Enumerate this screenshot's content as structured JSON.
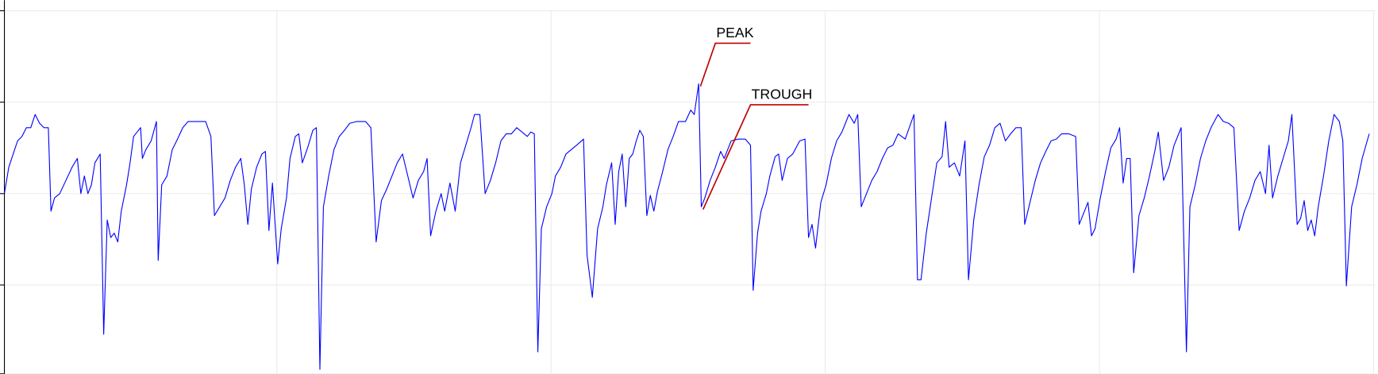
{
  "chart_data": {
    "type": "line",
    "x": [
      5,
      10,
      15,
      20,
      25,
      30,
      35,
      40,
      45,
      50,
      55,
      58,
      62,
      68,
      75,
      82,
      88,
      92,
      96,
      100,
      104,
      108,
      114,
      118,
      122,
      126,
      130,
      134,
      138,
      144,
      148,
      152,
      156,
      160,
      162,
      166,
      172,
      178,
      180,
      184,
      190,
      196,
      202,
      208,
      214,
      220,
      228,
      234,
      240,
      244,
      250,
      256,
      262,
      268,
      274,
      278,
      282,
      286,
      292,
      298,
      302,
      306,
      310,
      316,
      320,
      326,
      330,
      336,
      340,
      344,
      350,
      356,
      360,
      364,
      368,
      374,
      380,
      386,
      392,
      398,
      406,
      416,
      422,
      428,
      434,
      440,
      446,
      452,
      458,
      464,
      470,
      476,
      482,
      486,
      490,
      496,
      502,
      506,
      512,
      518,
      524,
      530,
      536,
      540,
      546,
      552,
      558,
      564,
      570,
      576,
      582,
      588,
      594,
      600,
      604,
      608,
      612,
      616,
      622,
      628,
      632,
      638,
      644,
      650,
      656,
      664,
      668,
      674,
      680,
      686,
      690,
      696,
      700,
      704,
      708,
      712,
      716,
      720,
      724,
      728,
      732,
      736,
      740,
      744,
      748,
      754,
      760,
      766,
      772,
      780,
      786,
      790,
      795,
      798,
      802,
      808,
      814,
      820,
      824,
      828,
      832,
      840,
      848,
      854,
      857,
      862,
      866,
      872,
      876,
      882,
      886,
      890,
      896,
      902,
      910,
      916,
      920,
      924,
      928,
      934,
      940,
      946,
      952,
      958,
      962,
      966,
      972,
      976,
      980,
      986,
      992,
      998,
      1004,
      1010,
      1016,
      1022,
      1030,
      1040,
      1044,
      1048,
      1054,
      1060,
      1066,
      1072,
      1076,
      1080,
      1086,
      1092,
      1098,
      1102,
      1108,
      1114,
      1120,
      1126,
      1132,
      1138,
      1144,
      1150,
      1156,
      1162,
      1166,
      1172,
      1178,
      1184,
      1190,
      1196,
      1202,
      1208,
      1216,
      1224,
      1228,
      1234,
      1238,
      1242,
      1246,
      1252,
      1258,
      1264,
      1270,
      1274,
      1278,
      1282,
      1286,
      1290,
      1296,
      1302,
      1308,
      1314,
      1318,
      1324,
      1330,
      1336,
      1344,
      1350,
      1354,
      1360,
      1366,
      1372,
      1378,
      1386,
      1392,
      1398,
      1404,
      1410,
      1416,
      1422,
      1428,
      1434,
      1440,
      1444,
      1448,
      1454,
      1460,
      1466,
      1470,
      1476,
      1480,
      1484,
      1488,
      1492,
      1496,
      1500,
      1506,
      1512,
      1518,
      1524,
      1528,
      1532,
      1538,
      1544,
      1550,
      1558
    ],
    "series": [
      {
        "color": "#0000ff",
        "values": [
          205,
          235,
          250,
          265,
          270,
          280,
          280,
          295,
          285,
          280,
          280,
          185,
          200,
          205,
          220,
          235,
          245,
          205,
          225,
          205,
          215,
          240,
          250,
          45,
          175,
          155,
          160,
          150,
          185,
          215,
          240,
          270,
          275,
          280,
          245,
          255,
          265,
          287,
          129,
          215,
          225,
          255,
          267,
          280,
          287,
          287,
          287,
          287,
          270,
          180,
          190,
          200,
          220,
          235,
          245,
          215,
          170,
          210,
          235,
          250,
          253,
          163,
          217,
          125,
          165,
          200,
          245,
          270,
          273,
          240,
          257,
          277,
          280,
          5,
          190,
          225,
          255,
          270,
          277,
          285,
          287,
          287,
          280,
          150,
          197,
          210,
          225,
          240,
          250,
          225,
          200,
          220,
          230,
          245,
          157,
          185,
          205,
          185,
          217,
          185,
          240,
          260,
          280,
          295,
          295,
          205,
          220,
          240,
          265,
          273,
          273,
          280,
          275,
          270,
          275,
          273,
          25,
          165,
          190,
          205,
          225,
          235,
          250,
          255,
          260,
          267,
          135,
          87,
          165,
          190,
          215,
          240,
          170,
          230,
          250,
          190,
          245,
          250,
          265,
          277,
          270,
          180,
          203,
          185,
          207,
          230,
          255,
          270,
          287,
          287,
          300,
          295,
          330,
          190,
          200,
          220,
          235,
          253,
          245,
          255,
          265,
          267,
          267,
          260,
          95,
          160,
          185,
          205,
          225,
          247,
          250,
          220,
          245,
          250,
          265,
          267,
          155,
          170,
          143,
          195,
          215,
          245,
          265,
          275,
          285,
          295,
          285,
          295,
          190,
          205,
          220,
          230,
          245,
          257,
          260,
          273,
          267,
          295,
          107,
          107,
          160,
          200,
          240,
          247,
          287,
          235,
          240,
          225,
          265,
          107,
          175,
          215,
          247,
          260,
          280,
          285,
          265,
          273,
          280,
          280,
          170,
          195,
          220,
          240,
          253,
          265,
          267,
          273,
          273,
          270,
          170,
          185,
          195,
          157,
          165,
          200,
          230,
          257,
          267,
          280,
          217,
          245,
          245,
          115,
          180,
          200,
          225,
          253,
          275,
          220,
          235,
          260,
          280,
          25,
          190,
          215,
          245,
          265,
          280,
          295,
          287,
          285,
          280,
          163,
          185,
          200,
          220,
          230,
          205,
          260,
          200,
          225,
          245,
          265,
          295,
          170,
          177,
          197,
          163,
          175,
          157,
          190,
          225,
          265,
          295,
          287,
          265,
          100,
          190,
          215,
          245,
          273
        ]
      }
    ],
    "xlim": [
      5,
      1565
    ],
    "xticks": [
      315,
      627,
      939,
      1251,
      1563
    ],
    "ylim": [
      0,
      413
    ],
    "yticks": [
      0,
      101,
      205,
      309,
      413
    ],
    "grid": true,
    "annotations": [
      {
        "text": "PEAK",
        "x": 795,
        "y": 330,
        "color": "#c00000"
      },
      {
        "text": "TROUGH",
        "x": 798,
        "y": 190,
        "color": "#c00000"
      }
    ]
  }
}
